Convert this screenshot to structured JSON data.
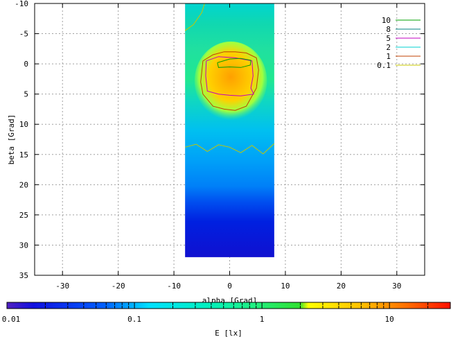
{
  "chart_data": {
    "type": "heatmap",
    "title": "",
    "xlabel": "alpha [Grad]",
    "ylabel": "beta [Grad]",
    "xlim": [
      -35,
      35
    ],
    "ylim": [
      -10,
      35
    ],
    "y_axis_inverted": true,
    "xticks": [
      -30,
      -20,
      -10,
      0,
      10,
      20,
      30
    ],
    "yticks": [
      -10,
      -5,
      0,
      5,
      10,
      15,
      20,
      25,
      30,
      35
    ],
    "grid": true,
    "data_extent": {
      "alpha": [
        -8,
        8
      ],
      "beta": [
        -10,
        32
      ]
    },
    "colorbar": {
      "label": "E [lx]",
      "scale": "log",
      "range": [
        0.01,
        30
      ],
      "tick_labels": [
        "0.01",
        "0.1",
        "1",
        "10"
      ],
      "tick_values": [
        0.01,
        0.1,
        1,
        10
      ]
    },
    "contour_levels": [
      {
        "label": "10",
        "value": 10,
        "color": "#00a000"
      },
      {
        "label": "8",
        "value": 8,
        "color": "#008080"
      },
      {
        "label": "5",
        "value": 5,
        "color": "#c000c0"
      },
      {
        "label": "2",
        "value": 2,
        "color": "#00d0d0"
      },
      {
        "label": "1",
        "value": 1,
        "color": "#c04000"
      },
      {
        "label": "0.1",
        "value": 0.1,
        "color": "#c8c800"
      }
    ],
    "legend_position": "top-right",
    "contours": [
      {
        "level": "1",
        "alpha": [
          -4.8,
          -3,
          -1,
          1,
          3,
          4.8,
          5.2,
          4.8,
          3,
          1,
          -1,
          -3,
          -4.8,
          -5.2,
          -4.8
        ],
        "beta": [
          -0.5,
          -1.5,
          -2,
          -2,
          -1.8,
          -1,
          1,
          4,
          7,
          7.7,
          7.5,
          7,
          5,
          3,
          -0.5
        ]
      },
      {
        "level": "5",
        "alpha": [
          -4.2,
          -2,
          1,
          4,
          4.2,
          3.8,
          4.3,
          2,
          0,
          -2,
          -4,
          -4.3,
          -4.2
        ],
        "beta": [
          -0.5,
          -1.2,
          -1,
          -0.5,
          2,
          4,
          5,
          5.3,
          5.2,
          5,
          4.5,
          2,
          -0.5
        ]
      },
      {
        "level": "10",
        "alpha": [
          -2.2,
          0,
          2,
          3.8,
          3.7,
          2,
          0,
          -2,
          -2.2
        ],
        "beta": [
          -0.2,
          -0.8,
          -0.9,
          -0.6,
          0.2,
          0.6,
          0.5,
          0.6,
          -0.2
        ]
      },
      {
        "level": "0.1",
        "alpha": [
          -8,
          -6,
          -4,
          -2,
          0,
          2,
          4,
          6,
          8
        ],
        "beta": [
          13.8,
          13.3,
          14.5,
          13.4,
          13.8,
          14.7,
          13.5,
          14.9,
          13.2
        ]
      },
      {
        "level": "0.1",
        "alpha": [
          -8,
          -6.5,
          -5,
          -4.5
        ],
        "beta": [
          -5.5,
          -6.5,
          -8.5,
          -10
        ]
      }
    ]
  }
}
